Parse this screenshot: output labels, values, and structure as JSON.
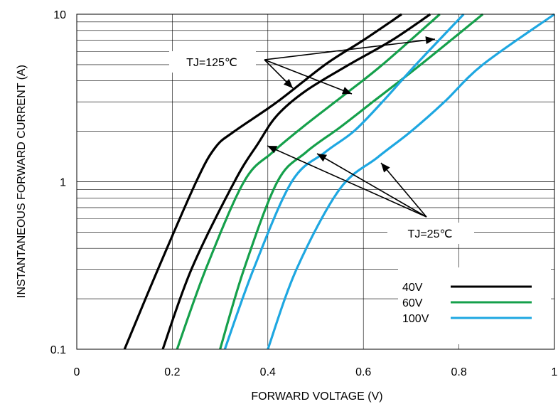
{
  "chart_data": {
    "type": "line",
    "xlabel": "FORWARD VOLTAGE (V)",
    "ylabel": "INSTANTANEOUS FORWARD CURRENT (A)",
    "xlim": [
      0,
      1
    ],
    "ylim": [
      0.1,
      10
    ],
    "y_scale": "log",
    "grid": true,
    "x_ticks": [
      "0",
      "0.2",
      "0.4",
      "0.6",
      "0.8",
      "1"
    ],
    "y_ticks": [
      "0.1",
      "1",
      "10"
    ],
    "legend": {
      "placement": "bottom-right"
    },
    "annotations": [
      {
        "text": "TJ=125℃"
      },
      {
        "text": "TJ=25℃"
      }
    ],
    "series": [
      {
        "name": "40V",
        "color": "#000000",
        "temp": "TJ=125℃",
        "points": [
          [
            0.1,
            0.1
          ],
          [
            0.17,
            0.3
          ],
          [
            0.25,
            1.0
          ],
          [
            0.29,
            1.6
          ],
          [
            0.33,
            2.0
          ],
          [
            0.42,
            3.0
          ],
          [
            0.52,
            5.0
          ],
          [
            0.6,
            7.0
          ],
          [
            0.68,
            10.0
          ]
        ]
      },
      {
        "name": "40V",
        "color": "#000000",
        "temp": "TJ=25℃",
        "points": [
          [
            0.18,
            0.1
          ],
          [
            0.24,
            0.3
          ],
          [
            0.33,
            1.0
          ],
          [
            0.38,
            1.7
          ],
          [
            0.42,
            2.5
          ],
          [
            0.48,
            3.5
          ],
          [
            0.57,
            5.0
          ],
          [
            0.66,
            7.0
          ],
          [
            0.74,
            10.0
          ]
        ]
      },
      {
        "name": "60V",
        "color": "#15a04b",
        "temp": "TJ=125℃",
        "points": [
          [
            0.21,
            0.1
          ],
          [
            0.27,
            0.3
          ],
          [
            0.35,
            1.0
          ],
          [
            0.41,
            1.5
          ],
          [
            0.48,
            2.2
          ],
          [
            0.56,
            3.3
          ],
          [
            0.64,
            5.0
          ],
          [
            0.76,
            10.0
          ]
        ]
      },
      {
        "name": "60V",
        "color": "#15a04b",
        "temp": "TJ=25℃",
        "points": [
          [
            0.3,
            0.1
          ],
          [
            0.35,
            0.3
          ],
          [
            0.42,
            1.0
          ],
          [
            0.48,
            1.5
          ],
          [
            0.55,
            2.1
          ],
          [
            0.62,
            3.0
          ],
          [
            0.72,
            5.0
          ],
          [
            0.85,
            10.0
          ]
        ]
      },
      {
        "name": "100V",
        "color": "#1ea7e1",
        "temp": "TJ=125℃",
        "points": [
          [
            0.31,
            0.1
          ],
          [
            0.37,
            0.3
          ],
          [
            0.45,
            1.0
          ],
          [
            0.52,
            1.5
          ],
          [
            0.58,
            2.0
          ],
          [
            0.64,
            3.0
          ],
          [
            0.71,
            5.0
          ],
          [
            0.81,
            10.0
          ]
        ]
      },
      {
        "name": "100V",
        "color": "#1ea7e1",
        "temp": "TJ=25℃",
        "points": [
          [
            0.4,
            0.1
          ],
          [
            0.46,
            0.3
          ],
          [
            0.55,
            0.9
          ],
          [
            0.63,
            1.4
          ],
          [
            0.7,
            2.0
          ],
          [
            0.77,
            3.0
          ],
          [
            0.85,
            5.0
          ],
          [
            1.0,
            10.0
          ]
        ]
      }
    ],
    "legend_entries": [
      {
        "label": "40V",
        "color": "#000000"
      },
      {
        "label": "60V",
        "color": "#15a04b"
      },
      {
        "label": "100V",
        "color": "#1ea7e1"
      }
    ]
  }
}
